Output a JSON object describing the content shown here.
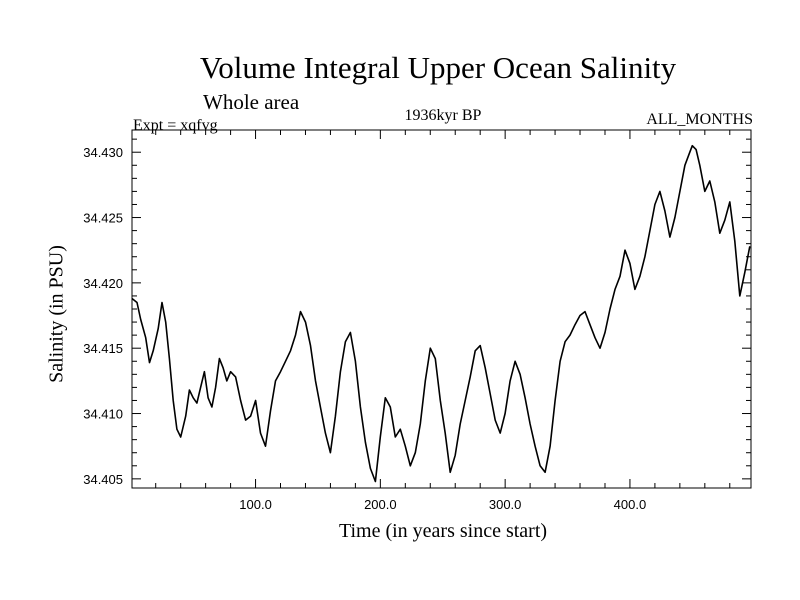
{
  "chart_data": {
    "type": "line",
    "title": "Volume Integral Upper Ocean Salinity",
    "subtitle": "Whole area",
    "experiment": "Expt = xqfvg",
    "period": "1936kyr BP",
    "months": "ALL_MONTHS",
    "xlabel": "Time (in years since start)",
    "ylabel": "Salinity (in PSU)",
    "xlim": [
      1,
      497
    ],
    "ylim": [
      34.4043,
      34.4317
    ],
    "xticks": [
      100,
      200,
      300,
      400
    ],
    "xtick_labels": [
      "100.0",
      "200.0",
      "300.0",
      "400.0"
    ],
    "yticks": [
      34.405,
      34.41,
      34.415,
      34.42,
      34.425,
      34.43
    ],
    "ytick_labels": [
      "34.405",
      "34.410",
      "34.415",
      "34.420",
      "34.425",
      "34.430"
    ],
    "series": [
      {
        "name": "Salinity",
        "color": "#000000",
        "x": [
          1,
          5,
          8,
          12,
          15,
          18,
          22,
          25,
          28,
          31,
          34,
          37,
          40,
          44,
          47,
          50,
          53,
          56,
          59,
          62,
          65,
          68,
          71,
          74,
          77,
          80,
          84,
          88,
          92,
          96,
          100,
          104,
          108,
          112,
          116,
          120,
          124,
          128,
          132,
          136,
          140,
          144,
          148,
          152,
          156,
          160,
          164,
          168,
          172,
          176,
          180,
          184,
          188,
          192,
          196,
          200,
          204,
          208,
          212,
          216,
          220,
          224,
          228,
          232,
          236,
          240,
          244,
          248,
          252,
          256,
          260,
          264,
          268,
          272,
          276,
          280,
          284,
          288,
          292,
          296,
          300,
          304,
          308,
          312,
          316,
          320,
          324,
          328,
          332,
          336,
          340,
          344,
          348,
          352,
          356,
          360,
          364,
          368,
          372,
          376,
          380,
          384,
          388,
          392,
          396,
          400,
          404,
          408,
          412,
          416,
          420,
          424,
          428,
          432,
          436,
          440,
          444,
          448,
          450,
          453,
          456,
          460,
          464,
          468,
          472,
          476,
          480,
          484,
          488,
          492,
          496
        ],
        "values": [
          34.4188,
          34.4185,
          34.4172,
          34.4158,
          34.4139,
          34.4148,
          34.4165,
          34.4185,
          34.417,
          34.4142,
          34.411,
          34.4088,
          34.4082,
          34.4098,
          34.4118,
          34.4112,
          34.4108,
          34.412,
          34.4132,
          34.4112,
          34.4105,
          34.412,
          34.4142,
          34.4135,
          34.4125,
          34.4132,
          34.4128,
          34.411,
          34.4095,
          34.4098,
          34.411,
          34.4085,
          34.4075,
          34.4102,
          34.4125,
          34.4132,
          34.414,
          34.4148,
          34.416,
          34.4178,
          34.417,
          34.4152,
          34.4125,
          34.4105,
          34.4085,
          34.407,
          34.4098,
          34.4132,
          34.4155,
          34.4162,
          34.414,
          34.4105,
          34.4078,
          34.4058,
          34.4048,
          34.4082,
          34.4112,
          34.4105,
          34.4082,
          34.4088,
          34.4075,
          34.406,
          34.407,
          34.4092,
          34.4125,
          34.415,
          34.4142,
          34.411,
          34.4085,
          34.4055,
          34.4068,
          34.4092,
          34.411,
          34.4128,
          34.4148,
          34.4152,
          34.4135,
          34.4115,
          34.4095,
          34.4085,
          34.41,
          34.4125,
          34.414,
          34.413,
          34.4112,
          34.4092,
          34.4075,
          34.406,
          34.4055,
          34.4075,
          34.411,
          34.414,
          34.4155,
          34.416,
          34.4168,
          34.4175,
          34.4178,
          34.4168,
          34.4158,
          34.415,
          34.4162,
          34.418,
          34.4195,
          34.4205,
          34.4225,
          34.4215,
          34.4195,
          34.4205,
          34.422,
          34.424,
          34.426,
          34.427,
          34.4255,
          34.4235,
          34.425,
          34.427,
          34.429,
          34.43,
          34.4305,
          34.4302,
          34.429,
          34.427,
          34.4278,
          34.4262,
          34.4238,
          34.4248,
          34.4262,
          34.4232,
          34.419,
          34.4208,
          34.4228
        ]
      }
    ]
  }
}
